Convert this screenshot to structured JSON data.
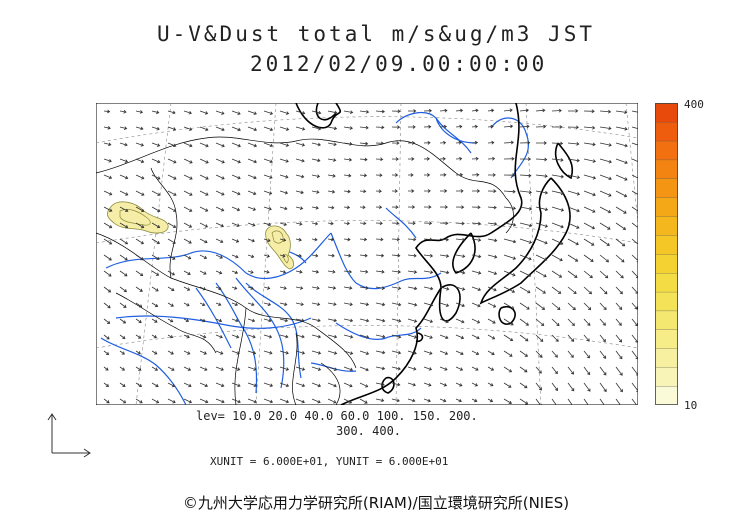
{
  "header": {
    "title_line1": "U-V&Dust total m/s&ug/m3 JST",
    "title_line2": "2012/02/09.00:00:00"
  },
  "colorbar": {
    "max_label": "400",
    "min_label": "10",
    "colors": [
      "#fafad8",
      "#f8f4b8",
      "#f7f0a0",
      "#f6ec88",
      "#f5e870",
      "#f4e258",
      "#f4dc44",
      "#f4d232",
      "#f4c626",
      "#f4b81e",
      "#f4a818",
      "#f49614",
      "#f48412",
      "#f27010",
      "#ee5c0e",
      "#e84a0c"
    ]
  },
  "levels": {
    "line1": "lev= 10.0 20.0 40.0 60.0 100. 150. 200.",
    "line2": "300. 400."
  },
  "units_text": "XUNIT = 6.000E+01, YUNIT = 6.000E+01",
  "copyright": "©九州大学応用力学研究所(RIAM)/国立環境研究所(NIES)",
  "map": {
    "coast_color": "#000000",
    "river_color": "#1f5fe0",
    "dust_fill_color": "#f6eea8",
    "dust_line_color": "#8a8a3a"
  }
}
